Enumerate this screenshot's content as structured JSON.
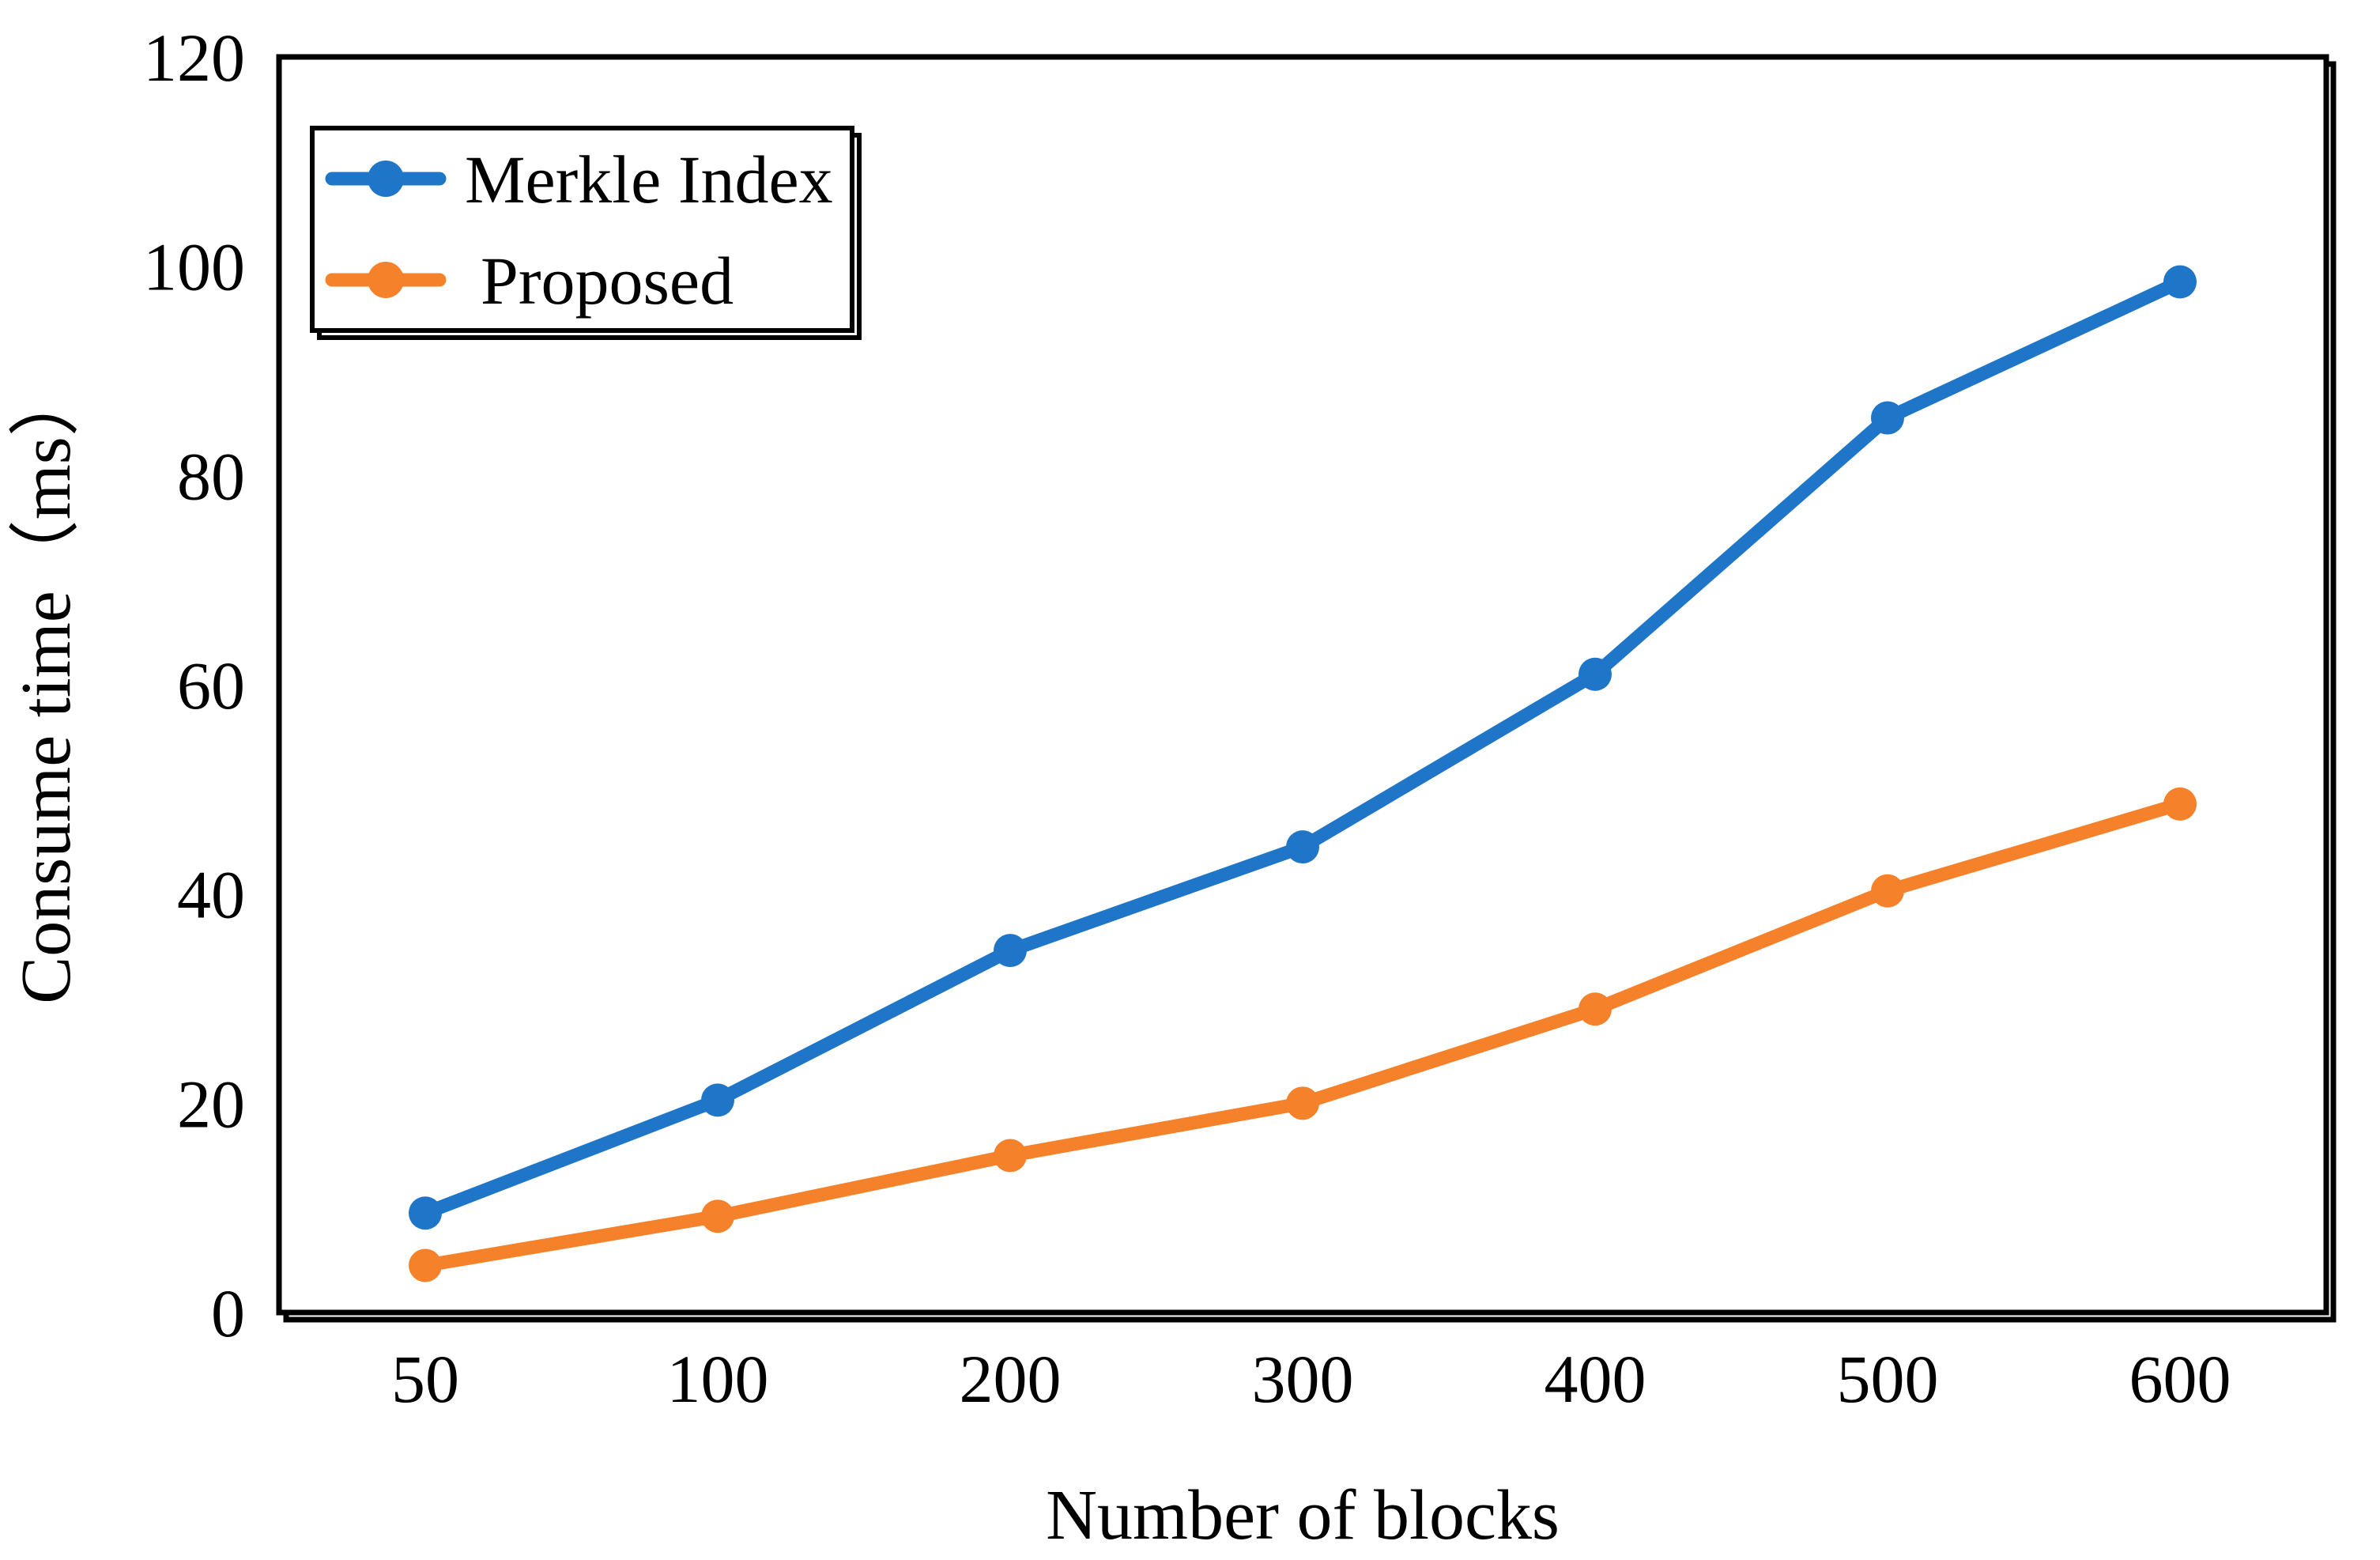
{
  "chart_data": {
    "type": "line",
    "title": "",
    "xlabel": "Number of blocks",
    "ylabel": "Consume time（ms）",
    "categories": [
      "50",
      "100",
      "200",
      "300",
      "400",
      "500",
      "600"
    ],
    "series": [
      {
        "name": "Merkle Index",
        "color": "#1F76C8",
        "marker": "circle",
        "values": [
          9.5,
          20.3,
          34.6,
          44.5,
          61.0,
          85.5,
          98.5
        ]
      },
      {
        "name": "Proposed",
        "color": "#F5812A",
        "marker": "circle",
        "values": [
          4.5,
          9.2,
          15.0,
          20.0,
          29.0,
          40.3,
          48.6
        ]
      }
    ],
    "ylim": [
      0,
      120
    ],
    "yticks": [
      0,
      20,
      40,
      60,
      80,
      100,
      120
    ],
    "xlim_type": "categorical",
    "grid": false,
    "legend_position": "top-left",
    "frame_color": "#000000",
    "text_color": "#000000",
    "background": "#FFFFFF"
  }
}
